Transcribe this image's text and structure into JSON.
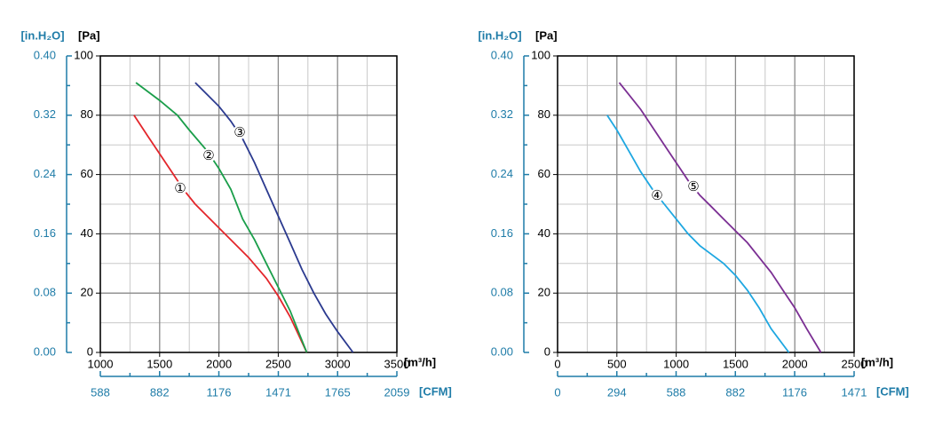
{
  "chart_data": [
    {
      "type": "line",
      "x_label": "[m³/h]",
      "y_label": "[Pa]",
      "y2_label": "[in.H₂O]",
      "x2_label": "[CFM]",
      "xlim": [
        1000,
        3500
      ],
      "xticks": [
        1000,
        1500,
        2000,
        2500,
        3000,
        3500
      ],
      "ylim": [
        0,
        100
      ],
      "yticks": [
        0,
        20,
        40,
        60,
        80,
        100
      ],
      "y2lim": [
        0,
        0.4
      ],
      "y2ticks": [
        {
          "value": 0,
          "label": "0.00"
        },
        0.08,
        0.16,
        0.24,
        0.32,
        {
          "value": 0.4,
          "label": "0.40"
        }
      ],
      "x2lim": [
        588,
        2059
      ],
      "x2ticks": [
        588,
        882,
        1176,
        1471,
        1765,
        2059
      ],
      "grid": true,
      "series": [
        {
          "name": "①",
          "color": "#e3262b",
          "x": [
            1284,
            1400,
            1500,
            1600,
            1700,
            1800,
            2000,
            2250,
            2400,
            2500,
            2600,
            2740
          ],
          "values": [
            80,
            73,
            67,
            61,
            55,
            50,
            42,
            32,
            25,
            19,
            12,
            0
          ]
        },
        {
          "name": "②",
          "color": "#1a9e4a",
          "x": [
            1300,
            1500,
            1650,
            1750,
            1900,
            2000,
            2100,
            2200,
            2300,
            2400,
            2500,
            2600,
            2740
          ],
          "values": [
            91,
            85,
            80,
            75,
            68,
            62,
            55,
            45,
            38,
            30,
            22,
            14,
            0
          ]
        },
        {
          "name": "③",
          "color": "#2b3a8f",
          "x": [
            1800,
            1900,
            2000,
            2100,
            2200,
            2300,
            2400,
            2500,
            2600,
            2700,
            2800,
            2900,
            3000,
            3130
          ],
          "values": [
            91,
            87,
            83,
            78,
            72,
            64,
            55,
            46,
            37,
            28,
            20,
            13,
            7,
            0
          ]
        }
      ]
    },
    {
      "type": "line",
      "x_label": "[m³/h]",
      "y_label": "[Pa]",
      "y2_label": "[in.H₂O]",
      "x2_label": "[CFM]",
      "xlim": [
        0,
        2500
      ],
      "xticks": [
        0,
        500,
        1000,
        1500,
        2000,
        2500
      ],
      "ylim": [
        0,
        100
      ],
      "yticks": [
        0,
        20,
        40,
        60,
        80,
        100
      ],
      "y2lim": [
        0,
        0.4
      ],
      "y2ticks": [
        {
          "value": 0,
          "label": "0.00"
        },
        0.08,
        0.16,
        0.24,
        0.32,
        {
          "value": 0.4,
          "label": "0.40"
        }
      ],
      "x2lim": [
        0,
        1471
      ],
      "x2ticks": [
        0,
        294,
        588,
        882,
        1176,
        1471
      ],
      "grid": true,
      "series": [
        {
          "name": "④",
          "color": "#1ea7e1",
          "x": [
            418,
            500,
            600,
            700,
            800,
            900,
            1000,
            1100,
            1200,
            1300,
            1400,
            1500,
            1600,
            1700,
            1800,
            1950
          ],
          "values": [
            80,
            75,
            68,
            61,
            55,
            50,
            45,
            40,
            36,
            33,
            30,
            26,
            21,
            15,
            8,
            0
          ]
        },
        {
          "name": "⑤",
          "color": "#7b2f93",
          "x": [
            520,
            600,
            700,
            800,
            900,
            1000,
            1100,
            1200,
            1300,
            1400,
            1500,
            1600,
            1700,
            1800,
            1900,
            2000,
            2100,
            2220
          ],
          "values": [
            91,
            87,
            82,
            76,
            70,
            64,
            58,
            53,
            49,
            45,
            41,
            37,
            32,
            27,
            21,
            15,
            8,
            0
          ]
        }
      ]
    }
  ]
}
